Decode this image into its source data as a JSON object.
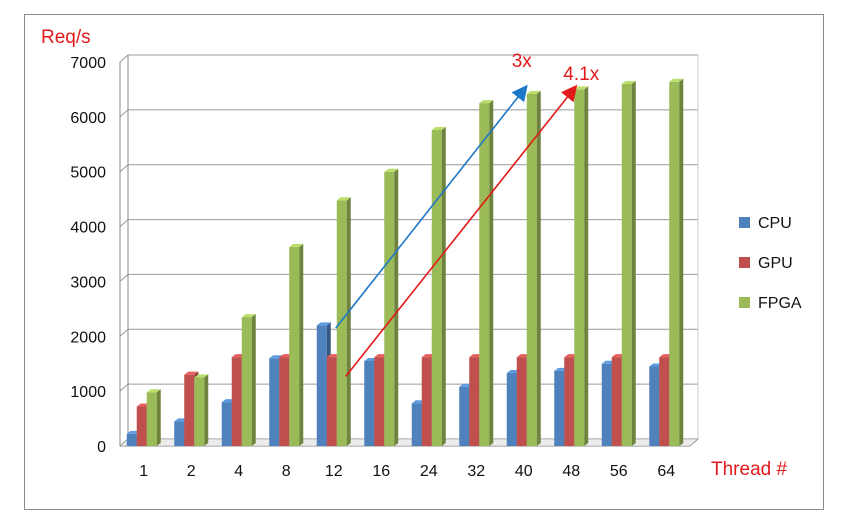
{
  "chart_data": {
    "type": "bar",
    "ylabel": "Req/s",
    "xlabel": "Thread #",
    "ylim": [
      0,
      7000
    ],
    "yticks": [
      "0",
      "1000",
      "2000",
      "3000",
      "4000",
      "5000",
      "6000",
      "7000"
    ],
    "categories": [
      "1",
      "2",
      "4",
      "8",
      "12",
      "16",
      "24",
      "32",
      "40",
      "48",
      "56",
      "64"
    ],
    "series": [
      {
        "name": "CPU",
        "color": "#4f81bd",
        "values": [
          220,
          450,
          800,
          1600,
          2200,
          1550,
          780,
          1080,
          1330,
          1370,
          1500,
          1450
        ]
      },
      {
        "name": "GPU",
        "color": "#c0504d",
        "values": [
          720,
          1300,
          1620,
          1620,
          1620,
          1620,
          1620,
          1620,
          1620,
          1620,
          1620,
          1620
        ]
      },
      {
        "name": "FPGA",
        "color": "#9bbb59",
        "values": [
          980,
          1250,
          2350,
          3630,
          4480,
          5000,
          5760,
          6250,
          6420,
          6500,
          6600,
          6640
        ]
      }
    ],
    "legend_position": "right",
    "grid": true,
    "annotations": [
      {
        "text": "3x",
        "color": "#1f77c8"
      },
      {
        "text": "4.1x",
        "color": "#e31a1a"
      }
    ]
  }
}
